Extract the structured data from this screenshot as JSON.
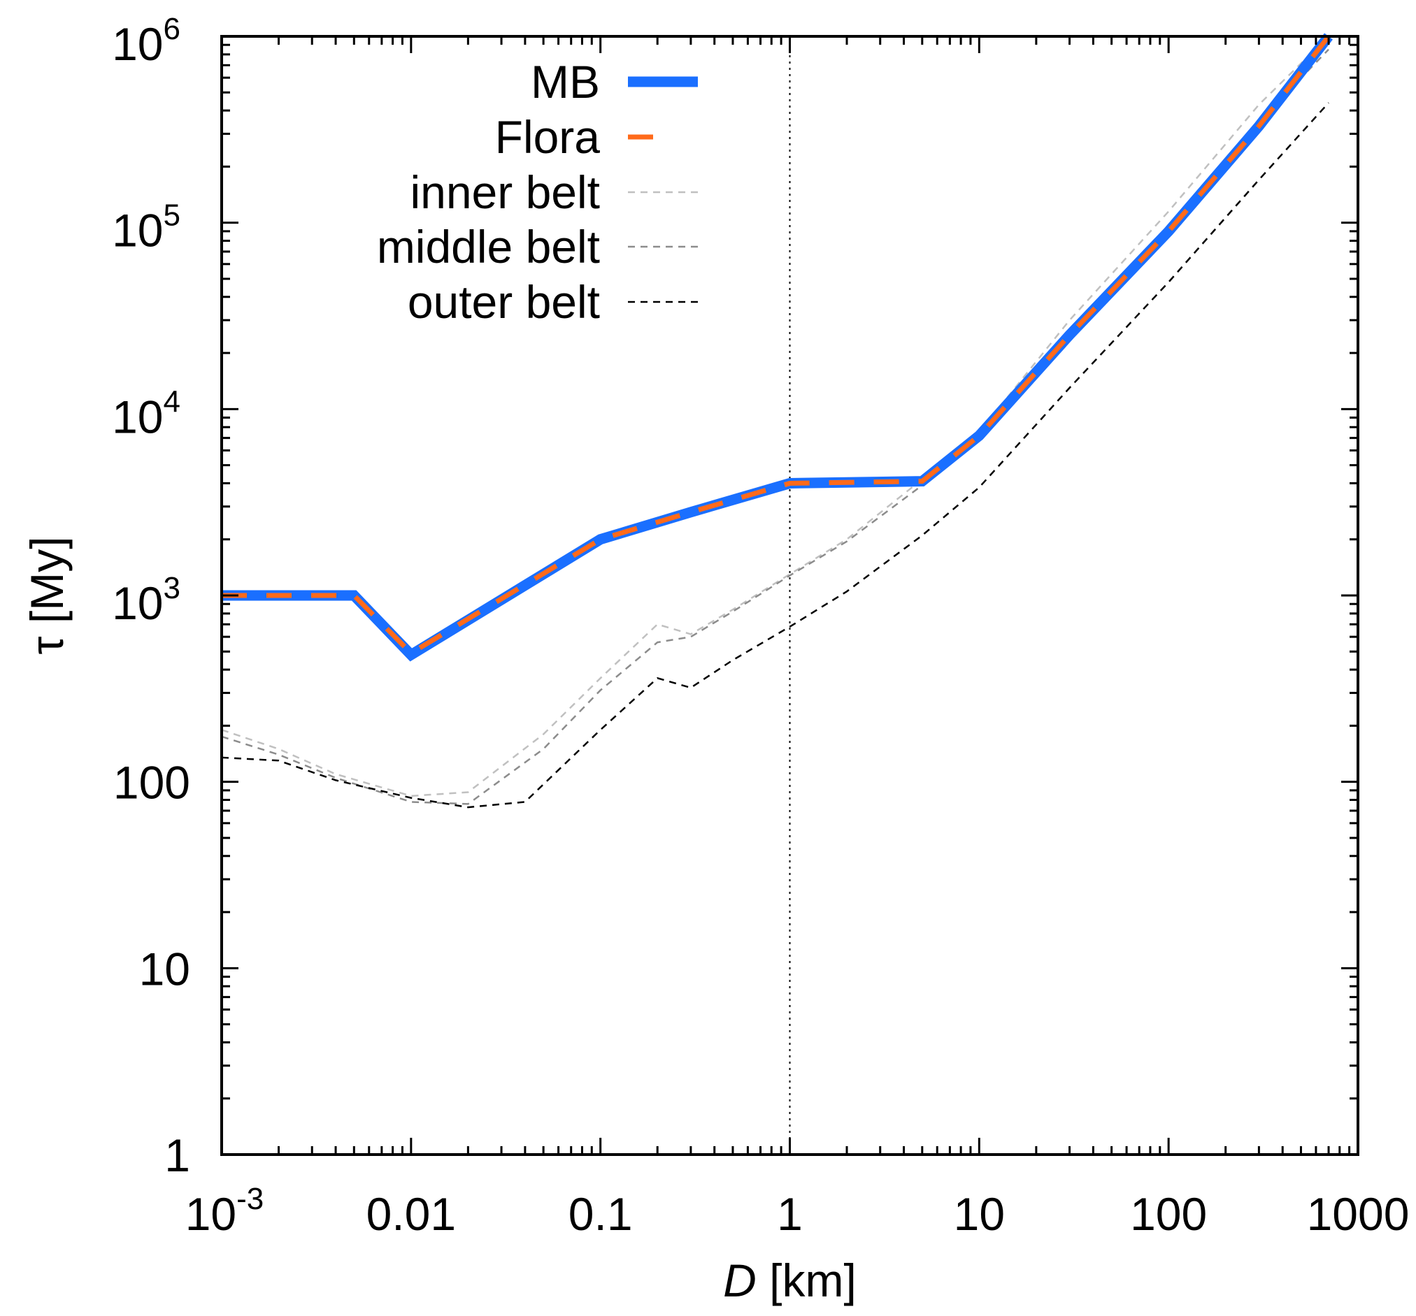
{
  "chart_data": {
    "type": "line",
    "xscale": "log",
    "yscale": "log",
    "xlim": [
      0.001,
      1000
    ],
    "ylim": [
      1,
      1000000
    ],
    "xlabel": {
      "var": "D",
      "unit": " [km]"
    },
    "ylabel": "τ [My]",
    "x_ticks": [
      {
        "value": 0.001,
        "base": "10",
        "exp": "-3"
      },
      {
        "value": 0.01,
        "label": "0.01"
      },
      {
        "value": 0.1,
        "label": "0.1"
      },
      {
        "value": 1,
        "label": "1"
      },
      {
        "value": 10,
        "label": "10"
      },
      {
        "value": 100,
        "label": "100"
      },
      {
        "value": 1000,
        "label": "1000"
      }
    ],
    "y_ticks": [
      {
        "value": 1,
        "label": "1"
      },
      {
        "value": 10,
        "label": "10"
      },
      {
        "value": 100,
        "label": "100"
      },
      {
        "value": 1000,
        "base": "10",
        "exp": "3"
      },
      {
        "value": 10000,
        "base": "10",
        "exp": "4"
      },
      {
        "value": 100000,
        "base": "10",
        "exp": "5"
      },
      {
        "value": 1000000,
        "base": "10",
        "exp": "6"
      }
    ],
    "reference_lines_x": [
      0.001,
      1
    ],
    "grid": false,
    "legend_position": "top-left",
    "series": [
      {
        "name": "MB",
        "color": "#1a6fff",
        "style": "solid-thick",
        "points": [
          [
            0.001,
            1000
          ],
          [
            0.005,
            1000
          ],
          [
            0.01,
            480
          ],
          [
            0.1,
            2000
          ],
          [
            0.3,
            2800
          ],
          [
            1,
            4000
          ],
          [
            5,
            4100
          ],
          [
            10,
            7200
          ],
          [
            30,
            25000
          ],
          [
            100,
            90000
          ],
          [
            300,
            330000
          ],
          [
            700,
            1000000
          ]
        ]
      },
      {
        "name": "Flora",
        "color": "#ff6a1a",
        "style": "dashed",
        "points": [
          [
            0.001,
            1000
          ],
          [
            0.005,
            1000
          ],
          [
            0.01,
            490
          ],
          [
            0.1,
            2000
          ],
          [
            0.3,
            2800
          ],
          [
            1,
            4000
          ],
          [
            5,
            4100
          ],
          [
            10,
            7200
          ],
          [
            30,
            25000
          ],
          [
            100,
            90000
          ],
          [
            300,
            330000
          ],
          [
            700,
            1000000
          ]
        ]
      },
      {
        "name": "inner belt",
        "color": "#c0c0c0",
        "style": "dashed-thin",
        "points": [
          [
            0.001,
            190
          ],
          [
            0.002,
            150
          ],
          [
            0.004,
            110
          ],
          [
            0.01,
            84
          ],
          [
            0.02,
            88
          ],
          [
            0.05,
            180
          ],
          [
            0.1,
            360
          ],
          [
            0.2,
            700
          ],
          [
            0.3,
            620
          ],
          [
            0.5,
            840
          ],
          [
            1,
            1300
          ],
          [
            2,
            2000
          ],
          [
            5,
            4200
          ],
          [
            10,
            7500
          ],
          [
            30,
            30000
          ],
          [
            100,
            115000
          ],
          [
            300,
            430000
          ],
          [
            700,
            1000000
          ]
        ]
      },
      {
        "name": "middle belt",
        "color": "#8c8c8c",
        "style": "dashed-thin",
        "points": [
          [
            0.001,
            175
          ],
          [
            0.002,
            140
          ],
          [
            0.004,
            105
          ],
          [
            0.01,
            78
          ],
          [
            0.02,
            76
          ],
          [
            0.05,
            150
          ],
          [
            0.1,
            310
          ],
          [
            0.2,
            560
          ],
          [
            0.3,
            600
          ],
          [
            0.5,
            820
          ],
          [
            1,
            1280
          ],
          [
            2,
            1950
          ],
          [
            5,
            3900
          ],
          [
            10,
            7000
          ],
          [
            30,
            26000
          ],
          [
            100,
            95000
          ],
          [
            300,
            350000
          ],
          [
            700,
            850000
          ]
        ]
      },
      {
        "name": "outer belt",
        "color": "#000000",
        "style": "dashed-thin",
        "points": [
          [
            0.001,
            135
          ],
          [
            0.002,
            130
          ],
          [
            0.004,
            102
          ],
          [
            0.01,
            82
          ],
          [
            0.02,
            73
          ],
          [
            0.04,
            78
          ],
          [
            0.1,
            190
          ],
          [
            0.2,
            360
          ],
          [
            0.3,
            320
          ],
          [
            0.5,
            450
          ],
          [
            1,
            680
          ],
          [
            2,
            1050
          ],
          [
            5,
            2100
          ],
          [
            10,
            3800
          ],
          [
            30,
            13000
          ],
          [
            100,
            48000
          ],
          [
            300,
            170000
          ],
          [
            700,
            440000
          ]
        ]
      }
    ]
  }
}
